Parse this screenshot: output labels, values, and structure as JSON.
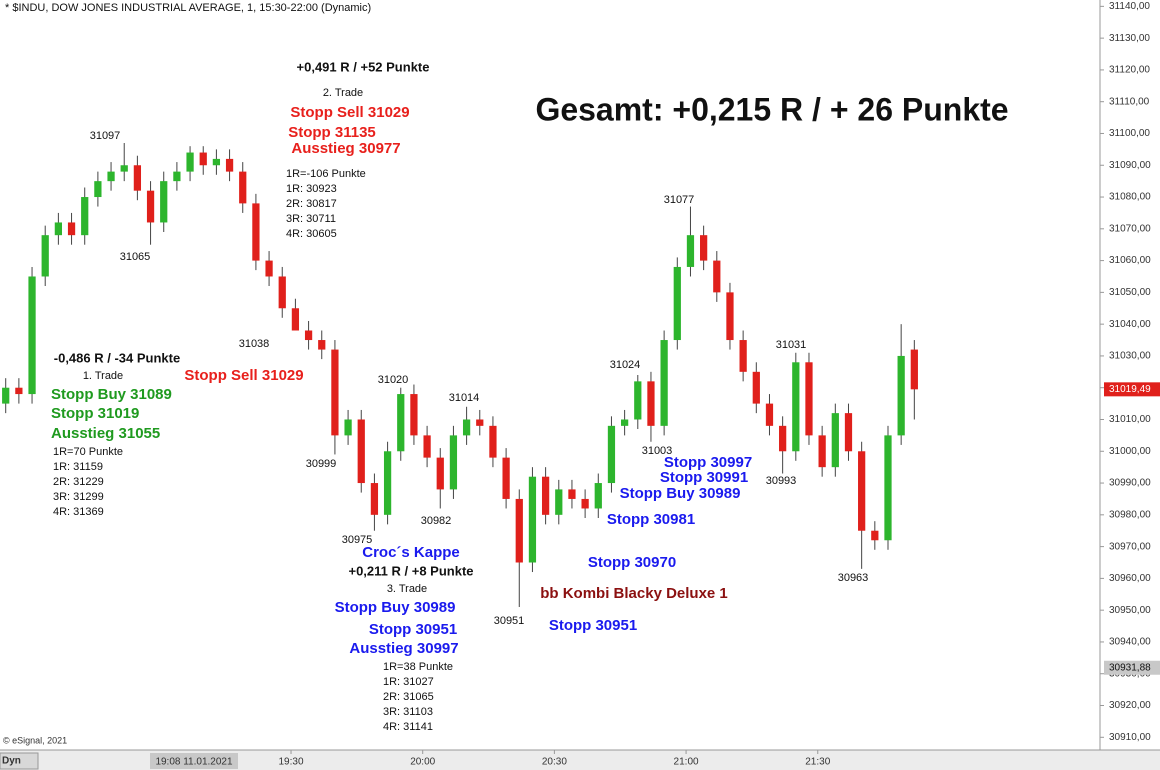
{
  "chart_data": {
    "type": "candlestick",
    "title": "* $INDU, DOW JONES INDUSTRIAL AVERAGE, 1, 15:30-22:00 (Dynamic)",
    "copyright": "© eSignal, 2021",
    "mode_label": "Dyn",
    "cursor_time": "19:08 11.01.2021",
    "up_color": "#2db52d",
    "down_color": "#e0201b",
    "x": [
      1105,
      1108,
      1111,
      1114,
      1117,
      1120,
      1123,
      1126,
      1129,
      1132,
      1135,
      1138,
      1141,
      1144,
      1147,
      1150,
      1153,
      1156,
      1159,
      1162,
      1165,
      1168,
      1171,
      1174,
      1177,
      1180,
      1183,
      1186,
      1189,
      1192,
      1195,
      1198,
      1201,
      1204,
      1207,
      1210,
      1213,
      1216,
      1219,
      1222,
      1225,
      1228,
      1231,
      1234,
      1237,
      1240,
      1243,
      1246,
      1249,
      1252,
      1255,
      1258,
      1261,
      1264,
      1267,
      1270,
      1273,
      1276,
      1279,
      1282,
      1285,
      1288,
      1291,
      1294,
      1297,
      1300,
      1303,
      1306,
      1309,
      1312
    ],
    "open": [
      31015,
      31020,
      31018,
      31055,
      31068,
      31072,
      31068,
      31080,
      31085,
      31088,
      31090,
      31082,
      31072,
      31085,
      31088,
      31094,
      31090,
      31092,
      31088,
      31078,
      31060,
      31055,
      31045,
      31038,
      31035,
      31032,
      31005,
      31010,
      30990,
      30980,
      31000,
      31018,
      31005,
      30998,
      30988,
      31005,
      31010,
      31008,
      30998,
      30985,
      30965,
      30992,
      30980,
      30988,
      30985,
      30982,
      30990,
      31008,
      31010,
      31022,
      31008,
      31035,
      31058,
      31068,
      31060,
      31050,
      31035,
      31025,
      31015,
      31008,
      31000,
      31028,
      31005,
      30995,
      31012,
      31000,
      30975,
      30972,
      31005,
      31032
    ],
    "high": [
      31023,
      31023,
      31058,
      31071,
      31075,
      31075,
      31083,
      31088,
      31091,
      31097,
      31093,
      31085,
      31088,
      31091,
      31096,
      31096,
      31095,
      31095,
      31091,
      31081,
      31063,
      31058,
      31048,
      31041,
      31038,
      31035,
      31013,
      31013,
      30993,
      31003,
      31020,
      31021,
      31008,
      31001,
      31008,
      31014,
      31013,
      31011,
      31001,
      30988,
      30995,
      30995,
      30991,
      30991,
      30988,
      30993,
      31011,
      31013,
      31024,
      31025,
      31038,
      31061,
      31077,
      31071,
      31063,
      31053,
      31038,
      31028,
      31018,
      31011,
      31031,
      31031,
      31008,
      31015,
      31015,
      31003,
      30978,
      31008,
      31040,
      31035
    ],
    "low": [
      31012,
      31015,
      31015,
      31052,
      31065,
      31065,
      31065,
      31077,
      31082,
      31085,
      31079,
      31065,
      31069,
      31082,
      31085,
      31087,
      31087,
      31085,
      31075,
      31057,
      31052,
      31042,
      31038,
      31032,
      31029,
      30999,
      31002,
      30987,
      30975,
      30977,
      30997,
      31002,
      30995,
      30982,
      30985,
      31002,
      31005,
      30995,
      30982,
      30951,
      30962,
      30977,
      30977,
      30982,
      30979,
      30979,
      30987,
      31005,
      31007,
      31003,
      31005,
      31032,
      31055,
      31057,
      31047,
      31032,
      31022,
      31012,
      31005,
      30993,
      30997,
      31002,
      30992,
      30992,
      30997,
      30963,
      30969,
      30969,
      31002,
      31010
    ],
    "close": [
      31020,
      31018,
      31055,
      31068,
      31072,
      31068,
      31080,
      31085,
      31088,
      31090,
      31082,
      31072,
      31085,
      31088,
      31094,
      31090,
      31092,
      31088,
      31078,
      31060,
      31055,
      31045,
      31038,
      31035,
      31032,
      31005,
      31010,
      30990,
      30980,
      31000,
      31018,
      31005,
      30998,
      30988,
      31005,
      31010,
      31008,
      30998,
      30985,
      30965,
      30992,
      30980,
      30988,
      30985,
      30982,
      30990,
      31008,
      31010,
      31022,
      31008,
      31035,
      31058,
      31068,
      31060,
      31050,
      31035,
      31025,
      31015,
      31008,
      31000,
      31028,
      31005,
      30995,
      31012,
      31000,
      30975,
      30972,
      31005,
      31030,
      31019.49
    ],
    "xlim": [
      1103.7,
      1354.3
    ],
    "xticks": [
      {
        "value": 1170,
        "label": "19:30"
      },
      {
        "value": 1200,
        "label": "20:00"
      },
      {
        "value": 1230,
        "label": "20:30"
      },
      {
        "value": 1260,
        "label": "21:00"
      },
      {
        "value": 1290,
        "label": "21:30"
      }
    ],
    "ylim": [
      30906,
      31142
    ],
    "yticks": [
      {
        "value": 31140,
        "label": "31140,00"
      },
      {
        "value": 31130,
        "label": "31130,00"
      },
      {
        "value": 31120,
        "label": "31120,00"
      },
      {
        "value": 31110,
        "label": "31110,00"
      },
      {
        "value": 31100,
        "label": "31100,00"
      },
      {
        "value": 31090,
        "label": "31090,00"
      },
      {
        "value": 31080,
        "label": "31080,00"
      },
      {
        "value": 31070,
        "label": "31070,00"
      },
      {
        "value": 31060,
        "label": "31060,00"
      },
      {
        "value": 31050,
        "label": "31050,00"
      },
      {
        "value": 31040,
        "label": "31040,00"
      },
      {
        "value": 31030,
        "label": "31030,00"
      },
      {
        "value": 31020,
        "label": "31020,00"
      },
      {
        "value": 31010,
        "label": "31010,00"
      },
      {
        "value": 31000,
        "label": "31000,00"
      },
      {
        "value": 30990,
        "label": "30990,00"
      },
      {
        "value": 30980,
        "label": "30980,00"
      },
      {
        "value": 30970,
        "label": "30970,00"
      },
      {
        "value": 30960,
        "label": "30960,00"
      },
      {
        "value": 30950,
        "label": "30950,00"
      },
      {
        "value": 30940,
        "label": "30940,00"
      },
      {
        "value": 30930,
        "label": "30930,00"
      },
      {
        "value": 30920,
        "label": "30920,00"
      },
      {
        "value": 30910,
        "label": "30910,00"
      }
    ],
    "last_price": {
      "value": 31019.49,
      "label": "31019,49"
    },
    "cursor_price": {
      "value": 30931.88,
      "label": "30931,88"
    },
    "annotations": [
      "+0,491 R / +52 Punkte",
      "2. Trade",
      "Stopp Sell 31029",
      "Stopp 31135",
      "Ausstieg 30977",
      "1R=-106 Punkte",
      "1R: 30923",
      "2R: 30817",
      "3R: 30711",
      "4R: 30605",
      "Gesamt: +0,215 R / + 26 Punkte",
      "-0,486 R / -34 Punkte",
      "1. Trade",
      "Stopp Buy 31089",
      "Stopp 31019",
      "Ausstieg 31055",
      "1R=70 Punkte",
      "1R: 31159",
      "2R: 31229",
      "3R: 31299",
      "4R: 31369",
      "Stopp Sell 31029",
      "Croc´s Kappe",
      "+0,211 R / +8 Punkte",
      "3. Trade",
      "Stopp Buy 30989",
      "Stopp 30951",
      "Ausstieg 30997",
      "1R=38 Punkte",
      "1R: 31027",
      "2R: 31065",
      "3R: 31103",
      "4R: 31141",
      "Stopp 30997",
      "Stopp 30991",
      "Stopp Buy 30989",
      "Stopp 30981",
      "Stopp 30970",
      "bb Kombi Blacky Deluxe 1",
      "Stopp 30951",
      "31097",
      "31065",
      "31038",
      "30999",
      "30975",
      "31020",
      "30982",
      "31014",
      "30951",
      "31024",
      "31003",
      "31077",
      "31031",
      "30993",
      "30963"
    ]
  }
}
